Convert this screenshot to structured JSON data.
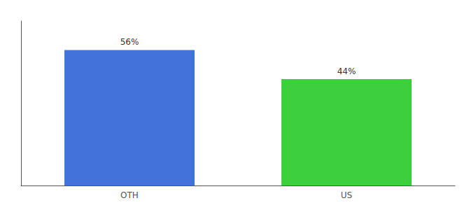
{
  "chart_data": {
    "type": "bar",
    "categories": [
      "OTH",
      "US"
    ],
    "values": [
      56,
      44
    ],
    "value_labels": [
      "56%",
      "44%"
    ],
    "colors": [
      "#4472db",
      "#3ecf3e"
    ],
    "ylim": [
      0,
      68
    ],
    "grid": false,
    "data_labels": true,
    "tick_labels": "x"
  }
}
